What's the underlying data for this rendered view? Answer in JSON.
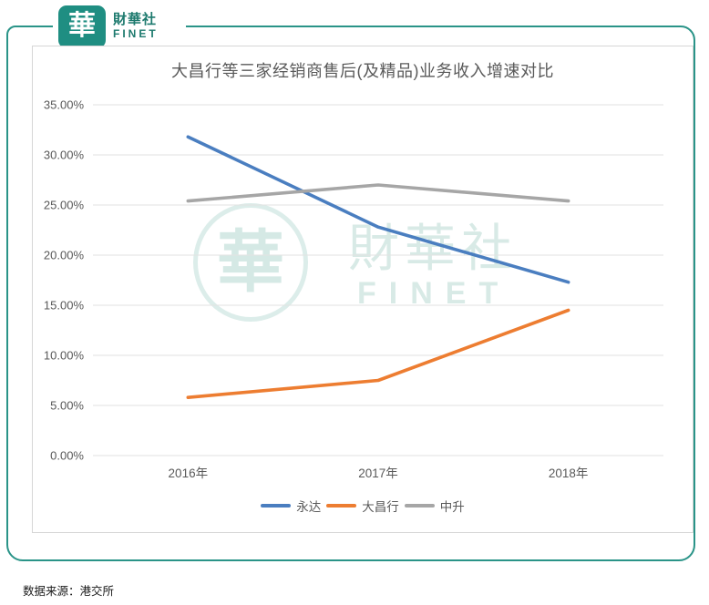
{
  "brand": {
    "logo_glyph": "華",
    "name_cn": "財華社",
    "name_en": "FINET",
    "teal": "#1F8E82",
    "frame_teal": "#2A9488"
  },
  "watermark": {
    "glyph": "華",
    "text_cn": "財華社",
    "text_en": "FINET",
    "color": "#D8EAE6"
  },
  "chart_data": {
    "type": "line",
    "title": "大昌行等三家经销商售后(及精品)业务收入增速对比",
    "categories": [
      "2016年",
      "2017年",
      "2018年"
    ],
    "series": [
      {
        "name": "永达",
        "color": "#4A7EC0",
        "values": [
          31.8,
          22.8,
          17.3
        ]
      },
      {
        "name": "大昌行",
        "color": "#ED7D31",
        "values": [
          5.8,
          7.5,
          14.5
        ]
      },
      {
        "name": "中升",
        "color": "#A6A6A6",
        "values": [
          25.4,
          27.0,
          25.4
        ]
      }
    ],
    "xlabel": "",
    "ylabel": "",
    "ylim": [
      0,
      35
    ],
    "y_ticks": [
      {
        "value": 35,
        "label": "35.00%"
      },
      {
        "value": 30,
        "label": "30.00%"
      },
      {
        "value": 25,
        "label": "25.00%"
      },
      {
        "value": 20,
        "label": "20.00%"
      },
      {
        "value": 15,
        "label": "15.00%"
      },
      {
        "value": 10,
        "label": "10.00%"
      },
      {
        "value": 5,
        "label": "5.00%"
      },
      {
        "value": 0,
        "label": "0.00%"
      }
    ],
    "grid": true,
    "legend_position": "bottom",
    "axis_text_color": "#595959",
    "gridline_color": "#E2E2E2"
  },
  "source": {
    "text": "数据来源：港交所"
  }
}
